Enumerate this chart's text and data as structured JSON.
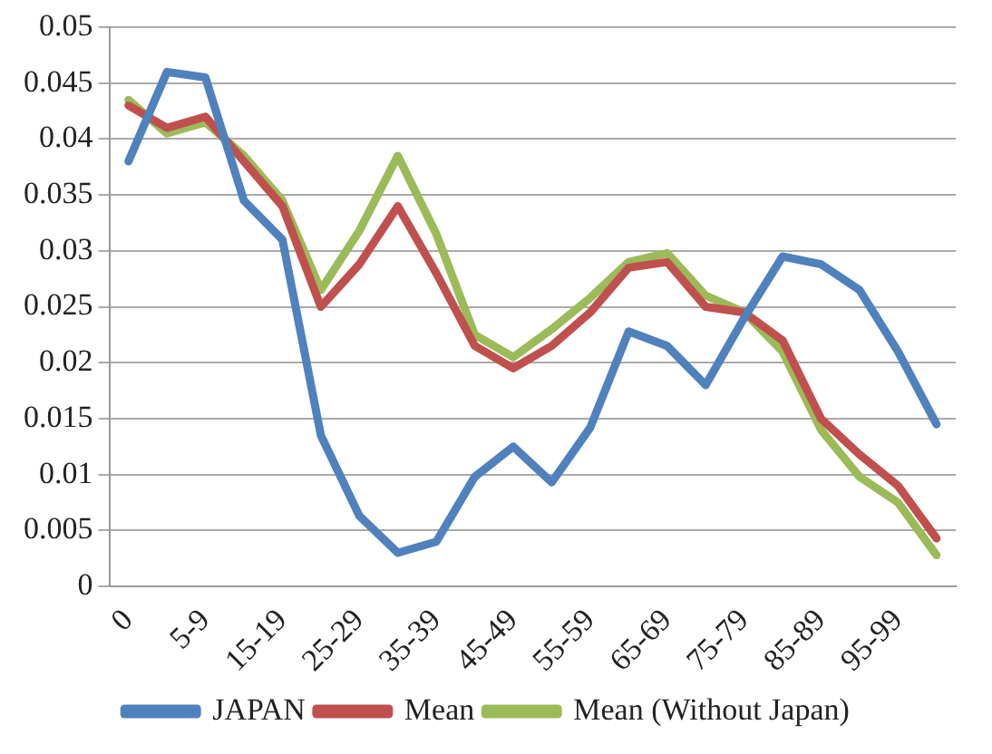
{
  "chart_data": {
    "type": "line",
    "categories": [
      "0",
      null,
      "5-9",
      null,
      "15-19",
      null,
      "25-29",
      null,
      "35-39",
      null,
      "45-49",
      null,
      "55-59",
      null,
      "65-69",
      null,
      "75-79",
      null,
      "85-89",
      null,
      "95-99",
      null
    ],
    "series": [
      {
        "name": "JAPAN",
        "color": "#4f81bd",
        "values": [
          0.038,
          0.046,
          0.0455,
          0.0345,
          0.031,
          0.0135,
          0.0063,
          0.003,
          0.004,
          0.0098,
          0.0125,
          0.0093,
          0.0142,
          0.0228,
          0.0215,
          0.018,
          0.024,
          0.0295,
          0.0288,
          0.0265,
          0.021,
          0.0145
        ]
      },
      {
        "name": "Mean",
        "color": "#c0504d",
        "values": [
          0.043,
          0.041,
          0.042,
          0.038,
          0.034,
          0.025,
          0.0288,
          0.034,
          0.028,
          0.0215,
          0.0195,
          0.0215,
          0.0245,
          0.0285,
          0.029,
          0.025,
          0.0245,
          0.022,
          0.015,
          0.0118,
          0.009,
          0.0043
        ]
      },
      {
        "name": "Mean (Without Japan)",
        "color": "#9bbb59",
        "values": [
          0.0435,
          0.0405,
          0.0415,
          0.0385,
          0.0345,
          0.0265,
          0.0318,
          0.0385,
          0.0315,
          0.0225,
          0.0205,
          0.023,
          0.0258,
          0.029,
          0.0298,
          0.026,
          0.0245,
          0.021,
          0.014,
          0.0098,
          0.0075,
          0.0028
        ]
      }
    ],
    "ylim": [
      0,
      0.05
    ],
    "yticks": [
      0,
      0.005,
      0.01,
      0.015,
      0.02,
      0.025,
      0.03,
      0.035,
      0.04,
      0.045,
      0.05
    ],
    "grid": "y",
    "legend": "bottom",
    "marker": "none",
    "line_style": "solid"
  }
}
